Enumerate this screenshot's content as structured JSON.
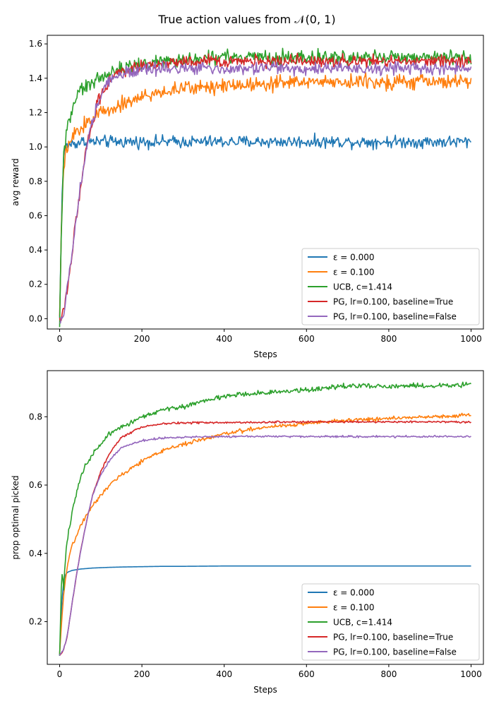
{
  "figure": {
    "title": "True action values from 𝒩(0, 1)"
  },
  "colors": {
    "eps0": "#1f77b4",
    "eps01": "#ff7f0e",
    "ucb": "#2ca02c",
    "pg_true": "#d62728",
    "pg_false": "#9467bd"
  },
  "chart_data": [
    {
      "type": "line",
      "xlabel": "Steps",
      "ylabel": "avg reward",
      "xlim": [
        -30,
        1030
      ],
      "ylim": [
        -0.06,
        1.65
      ],
      "xticks": [
        0,
        200,
        400,
        600,
        800,
        1000
      ],
      "yticks": [
        0.0,
        0.2,
        0.4,
        0.6,
        0.8,
        1.0,
        1.2,
        1.4,
        1.6
      ],
      "ytick_labels": [
        "0.0",
        "0.2",
        "0.4",
        "0.6",
        "0.8",
        "1.0",
        "1.2",
        "1.4",
        "1.6"
      ],
      "grid": false,
      "legend_position": "lower-right",
      "x": [
        0,
        5,
        10,
        15,
        20,
        30,
        40,
        50,
        60,
        70,
        80,
        100,
        120,
        150,
        200,
        250,
        300,
        400,
        500,
        600,
        700,
        800,
        900,
        1000
      ],
      "series": [
        {
          "name": "ε = 0.000",
          "color_key": "eps0",
          "noise": 0.025,
          "values": [
            0.0,
            0.65,
            0.95,
            1.0,
            1.01,
            1.02,
            1.02,
            1.03,
            1.03,
            1.03,
            1.03,
            1.03,
            1.03,
            1.03,
            1.03,
            1.03,
            1.03,
            1.03,
            1.03,
            1.03,
            1.03,
            1.03,
            1.03,
            1.03
          ]
        },
        {
          "name": "ε = 0.100",
          "color_key": "eps01",
          "noise": 0.03,
          "values": [
            0.0,
            0.6,
            0.88,
            0.95,
            1.0,
            1.05,
            1.08,
            1.1,
            1.13,
            1.15,
            1.17,
            1.2,
            1.22,
            1.25,
            1.29,
            1.32,
            1.34,
            1.36,
            1.37,
            1.38,
            1.38,
            1.38,
            1.38,
            1.38
          ]
        },
        {
          "name": "UCB, c=1.414",
          "color_key": "ucb",
          "noise": 0.03,
          "values": [
            -0.03,
            0.6,
            0.95,
            1.05,
            1.13,
            1.22,
            1.28,
            1.32,
            1.34,
            1.36,
            1.38,
            1.41,
            1.43,
            1.45,
            1.48,
            1.5,
            1.51,
            1.52,
            1.52,
            1.52,
            1.52,
            1.52,
            1.52,
            1.52
          ]
        },
        {
          "name": "PG, lr=0.100, baseline=True",
          "color_key": "pg_true",
          "noise": 0.025,
          "values": [
            -0.02,
            0.0,
            0.05,
            0.12,
            0.2,
            0.38,
            0.58,
            0.76,
            0.92,
            1.05,
            1.15,
            1.3,
            1.39,
            1.44,
            1.47,
            1.49,
            1.5,
            1.5,
            1.5,
            1.5,
            1.5,
            1.5,
            1.5,
            1.5
          ]
        },
        {
          "name": "PG, lr=0.100, baseline=False",
          "color_key": "pg_false",
          "noise": 0.025,
          "values": [
            -0.02,
            0.0,
            0.05,
            0.12,
            0.2,
            0.38,
            0.58,
            0.76,
            0.92,
            1.05,
            1.15,
            1.3,
            1.38,
            1.43,
            1.45,
            1.46,
            1.46,
            1.46,
            1.46,
            1.46,
            1.46,
            1.46,
            1.46,
            1.46
          ]
        }
      ]
    },
    {
      "type": "line",
      "xlabel": "Steps",
      "ylabel": "prop optimal picked",
      "xlim": [
        -30,
        1030
      ],
      "ylim": [
        0.075,
        0.935
      ],
      "xticks": [
        0,
        200,
        400,
        600,
        800,
        1000
      ],
      "yticks": [
        0.2,
        0.4,
        0.6,
        0.8
      ],
      "ytick_labels": [
        "0.2",
        "0.4",
        "0.6",
        "0.8"
      ],
      "grid": false,
      "legend_position": "lower-right",
      "x": [
        0,
        5,
        10,
        15,
        20,
        30,
        40,
        50,
        60,
        70,
        80,
        100,
        120,
        150,
        200,
        250,
        300,
        400,
        500,
        600,
        700,
        800,
        900,
        1000
      ],
      "series": [
        {
          "name": "ε = 0.000",
          "color_key": "eps0",
          "noise": 0.0,
          "values": [
            0.1,
            0.25,
            0.32,
            0.34,
            0.345,
            0.35,
            0.352,
            0.354,
            0.355,
            0.356,
            0.357,
            0.358,
            0.359,
            0.36,
            0.361,
            0.362,
            0.362,
            0.363,
            0.363,
            0.363,
            0.363,
            0.363,
            0.363,
            0.363
          ]
        },
        {
          "name": "ε = 0.100",
          "color_key": "eps01",
          "noise": 0.004,
          "values": [
            0.1,
            0.2,
            0.28,
            0.33,
            0.37,
            0.42,
            0.45,
            0.48,
            0.5,
            0.52,
            0.54,
            0.57,
            0.6,
            0.63,
            0.67,
            0.7,
            0.72,
            0.75,
            0.77,
            0.78,
            0.79,
            0.795,
            0.8,
            0.805
          ]
        },
        {
          "name": "UCB, c=1.414",
          "color_key": "ucb",
          "noise": 0.005,
          "values": [
            0.1,
            0.35,
            0.3,
            0.4,
            0.45,
            0.52,
            0.57,
            0.62,
            0.65,
            0.67,
            0.69,
            0.72,
            0.75,
            0.77,
            0.8,
            0.82,
            0.83,
            0.86,
            0.87,
            0.88,
            0.89,
            0.89,
            0.89,
            0.895
          ]
        },
        {
          "name": "PG, lr=0.100, baseline=True",
          "color_key": "pg_true",
          "noise": 0.002,
          "values": [
            0.1,
            0.11,
            0.12,
            0.14,
            0.17,
            0.25,
            0.33,
            0.4,
            0.46,
            0.52,
            0.57,
            0.64,
            0.69,
            0.74,
            0.77,
            0.78,
            0.782,
            0.783,
            0.784,
            0.785,
            0.785,
            0.785,
            0.785,
            0.785
          ]
        },
        {
          "name": "PG, lr=0.100, baseline=False",
          "color_key": "pg_false",
          "noise": 0.002,
          "values": [
            0.1,
            0.11,
            0.12,
            0.14,
            0.17,
            0.25,
            0.33,
            0.4,
            0.46,
            0.52,
            0.57,
            0.63,
            0.67,
            0.71,
            0.73,
            0.738,
            0.74,
            0.742,
            0.742,
            0.742,
            0.742,
            0.742,
            0.742,
            0.742
          ]
        }
      ]
    }
  ]
}
